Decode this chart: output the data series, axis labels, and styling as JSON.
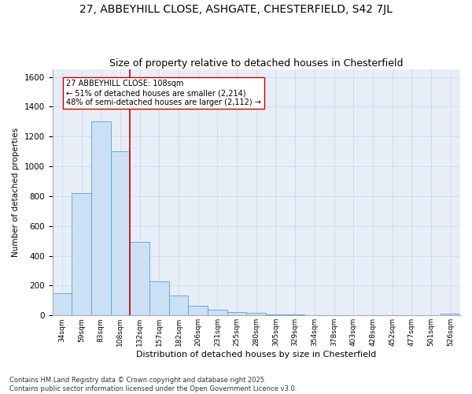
{
  "title": "27, ABBEYHILL CLOSE, ASHGATE, CHESTERFIELD, S42 7JL",
  "subtitle": "Size of property relative to detached houses in Chesterfield",
  "xlabel": "Distribution of detached houses by size in Chesterfield",
  "ylabel": "Number of detached properties",
  "categories": [
    "34sqm",
    "59sqm",
    "83sqm",
    "108sqm",
    "132sqm",
    "157sqm",
    "182sqm",
    "206sqm",
    "231sqm",
    "255sqm",
    "280sqm",
    "305sqm",
    "329sqm",
    "354sqm",
    "378sqm",
    "403sqm",
    "428sqm",
    "452sqm",
    "477sqm",
    "501sqm",
    "526sqm"
  ],
  "values": [
    150,
    820,
    1300,
    1100,
    495,
    230,
    132,
    65,
    38,
    25,
    15,
    8,
    5,
    3,
    2,
    2,
    1,
    1,
    1,
    0,
    12
  ],
  "bar_color": "#cce0f5",
  "bar_edge_color": "#5a9fd4",
  "redline_color": "#cc0000",
  "annotation_text": "27 ABBEYHILL CLOSE: 108sqm\n← 51% of detached houses are smaller (2,214)\n48% of semi-detached houses are larger (2,112) →",
  "annotation_box_color": "#ffffff",
  "annotation_box_edge": "#cc0000",
  "grid_color": "#c8d4e8",
  "background_color": "#e8eef8",
  "ylim": [
    0,
    1650
  ],
  "footer": "Contains HM Land Registry data © Crown copyright and database right 2025.\nContains public sector information licensed under the Open Government Licence v3.0.",
  "title_fontsize": 10,
  "subtitle_fontsize": 9,
  "redline_index": 3.5
}
